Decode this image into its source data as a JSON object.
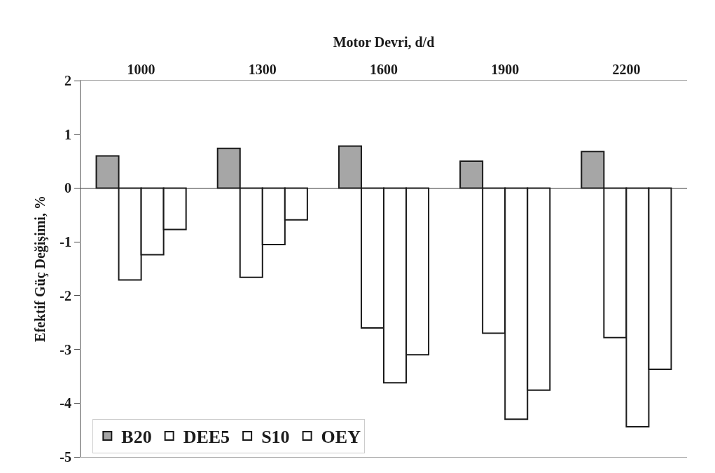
{
  "chart_data": {
    "type": "bar",
    "xlabel": "Motor Devri, d/d",
    "ylabel": "Efektif Güç Değişimi, %",
    "categories": [
      "1000",
      "1300",
      "1600",
      "1900",
      "2200"
    ],
    "series": [
      {
        "name": "B20",
        "color": "#a6a6a6",
        "values": [
          0.6,
          0.74,
          0.78,
          0.5,
          0.68
        ]
      },
      {
        "name": "DEE5",
        "color": "#ffffff",
        "values": [
          -1.71,
          -1.66,
          -2.6,
          -2.7,
          -2.78
        ]
      },
      {
        "name": "S10",
        "color": "#ffffff",
        "values": [
          -1.24,
          -1.05,
          -3.62,
          -4.3,
          -4.44
        ]
      },
      {
        "name": "OEY",
        "color": "#ffffff",
        "values": [
          -0.77,
          -0.59,
          -3.1,
          -3.76,
          -3.37
        ]
      }
    ],
    "ylim": [
      -5,
      2
    ],
    "yticks": [
      -5,
      -4,
      -3,
      -2,
      -1,
      0,
      1,
      2
    ],
    "legend": "bottom left"
  }
}
